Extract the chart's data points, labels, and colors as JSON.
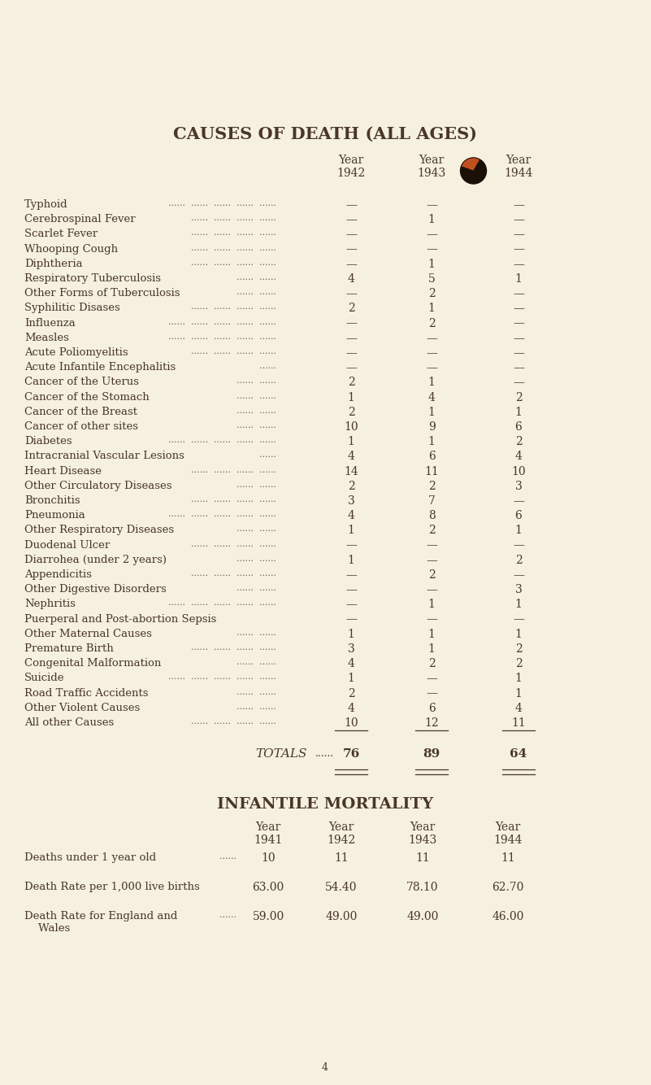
{
  "bg_color": "#f5f0e0",
  "text_color": "#4a3728",
  "title": "CAUSES OF DEATH (ALL AGES)",
  "header_years": [
    "Year\n1942",
    "Year\n1943",
    "Year\n1944"
  ],
  "rows": [
    [
      "Typhoid",
      "—",
      "—",
      "—"
    ],
    [
      "Cerebrospinal Fever",
      "—",
      "1",
      "—"
    ],
    [
      "Scarlet Fever",
      "—",
      "—",
      "—"
    ],
    [
      "Whooping Cough",
      "—",
      "—",
      "—"
    ],
    [
      "Diphtheria",
      "—",
      "1",
      "—"
    ],
    [
      "Respiratory Tuberculosis",
      "4",
      "5",
      "1"
    ],
    [
      "Other Forms of Tuberculosis",
      "—",
      "2",
      "—"
    ],
    [
      "Syphilitic Disases",
      "2",
      "1",
      "—"
    ],
    [
      "Influenza",
      "—",
      "2",
      "—"
    ],
    [
      "Measles",
      "—",
      "—",
      "—"
    ],
    [
      "Acute Poliomyelitis",
      "—",
      "—",
      "—"
    ],
    [
      "Acute Infantile Encephalitis",
      "—",
      "—",
      "—"
    ],
    [
      "Cancer of the Uterus",
      "2",
      "1",
      "—"
    ],
    [
      "Cancer of the Stomach",
      "1",
      "4",
      "2"
    ],
    [
      "Cancer of the Breast",
      "2",
      "1",
      "1"
    ],
    [
      "Cancer of other sites",
      "10",
      "9",
      "6"
    ],
    [
      "Diabetes",
      "1",
      "1",
      "2"
    ],
    [
      "Intracranial Vascular Lesions",
      "4",
      "6",
      "4"
    ],
    [
      "Heart Disease",
      "14",
      "11",
      "10"
    ],
    [
      "Other Circulatory Diseases",
      "2",
      "2",
      "3"
    ],
    [
      "Bronchitis",
      "3",
      "7",
      "—"
    ],
    [
      "Pneumonia",
      "4",
      "8",
      "6"
    ],
    [
      "Other Respiratory Diseases",
      "1",
      "2",
      "1"
    ],
    [
      "Duodenal Ulcer",
      "—",
      "—",
      "—"
    ],
    [
      "Diarrohea (under 2 years)",
      "1",
      "—",
      "2"
    ],
    [
      "Appendicitis",
      "—",
      "2",
      "—"
    ],
    [
      "Other Digestive Disorders",
      "—",
      "—",
      "3"
    ],
    [
      "Nephritis",
      "—",
      "1",
      "1"
    ],
    [
      "Puerperal and Post-abortion Sepsis",
      "—",
      "—",
      "—"
    ],
    [
      "Other Maternal Causes",
      "1",
      "1",
      "1"
    ],
    [
      "Premature Birth",
      "3",
      "1",
      "2"
    ],
    [
      "Congenital Malformation",
      "4",
      "2",
      "2"
    ],
    [
      "Suicide",
      "1",
      "—",
      "1"
    ],
    [
      "Road Traffic Accidents",
      "2",
      "—",
      "1"
    ],
    [
      "Other Violent Causes",
      "4",
      "6",
      "4"
    ],
    [
      "All other Causes",
      "10",
      "12",
      "11"
    ]
  ],
  "totals": [
    "76",
    "89",
    "64"
  ],
  "section2_title": "INFANTILE MORTALITY",
  "section2_col_headers": [
    "Year\n1941",
    "Year\n1942",
    "Year\n1943",
    "Year\n1944"
  ],
  "section2_rows": [
    [
      "Deaths under 1 year old",
      "......",
      "10",
      "11",
      "11",
      "11"
    ],
    [
      "Death Rate per 1,000 live births",
      "",
      "63.00",
      "54.40",
      "78.10",
      "62.70"
    ],
    [
      "Death Rate for England and\n    Wales",
      "......",
      "59.00",
      "49.00",
      "49.00",
      "46.00"
    ]
  ],
  "footer": "4",
  "dot_color_dark": "#1a1008",
  "dot_color_orange": "#c05020",
  "leaders_short": "...... ......",
  "leaders_long": "...... ...... ...... ......"
}
